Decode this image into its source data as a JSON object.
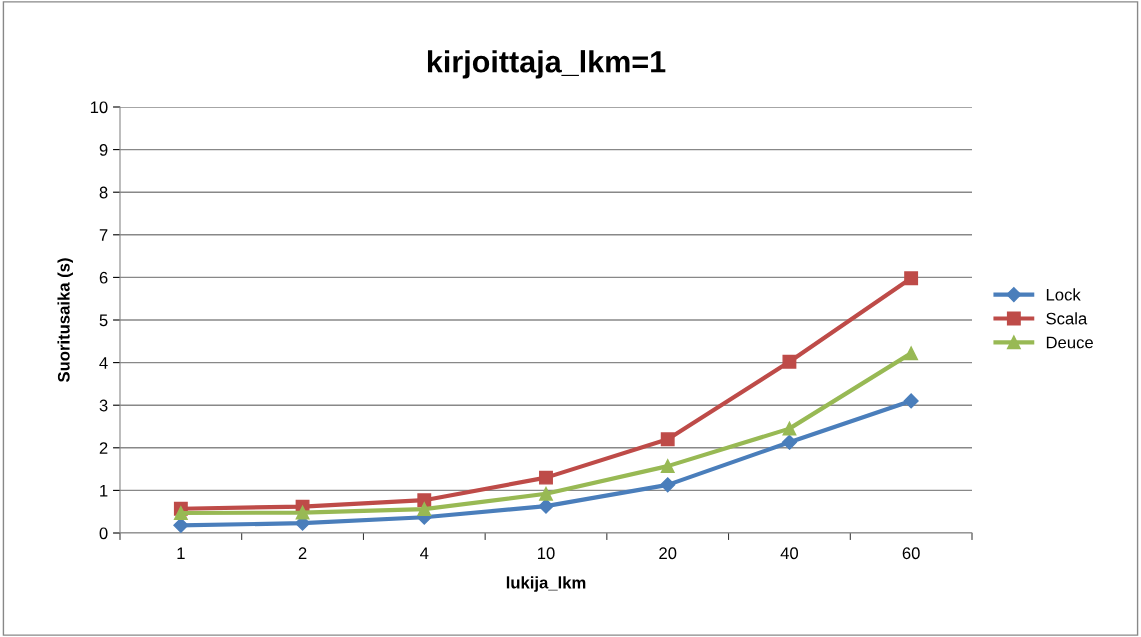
{
  "chart_data": {
    "type": "line",
    "title": "kirjoittaja_lkm=1",
    "xlabel": "lukija_lkm",
    "ylabel": "Suoritusaika (s)",
    "categories": [
      "1",
      "2",
      "4",
      "10",
      "20",
      "40",
      "60"
    ],
    "series": [
      {
        "name": "Lock",
        "color": "#4a7ebb",
        "marker": "diamond",
        "values": [
          0.18,
          0.23,
          0.37,
          0.63,
          1.13,
          2.13,
          3.1
        ]
      },
      {
        "name": "Scala",
        "color": "#be4b48",
        "marker": "square",
        "values": [
          0.57,
          0.62,
          0.77,
          1.3,
          2.2,
          4.02,
          5.98
        ]
      },
      {
        "name": "Deuce",
        "color": "#98b954",
        "marker": "triangle",
        "values": [
          0.47,
          0.48,
          0.56,
          0.92,
          1.57,
          2.45,
          4.22
        ]
      }
    ],
    "ylim": [
      0,
      10
    ],
    "yticks": [
      0,
      1,
      2,
      3,
      4,
      5,
      6,
      7,
      8,
      9,
      10
    ],
    "grid": "y",
    "legend": "right"
  }
}
